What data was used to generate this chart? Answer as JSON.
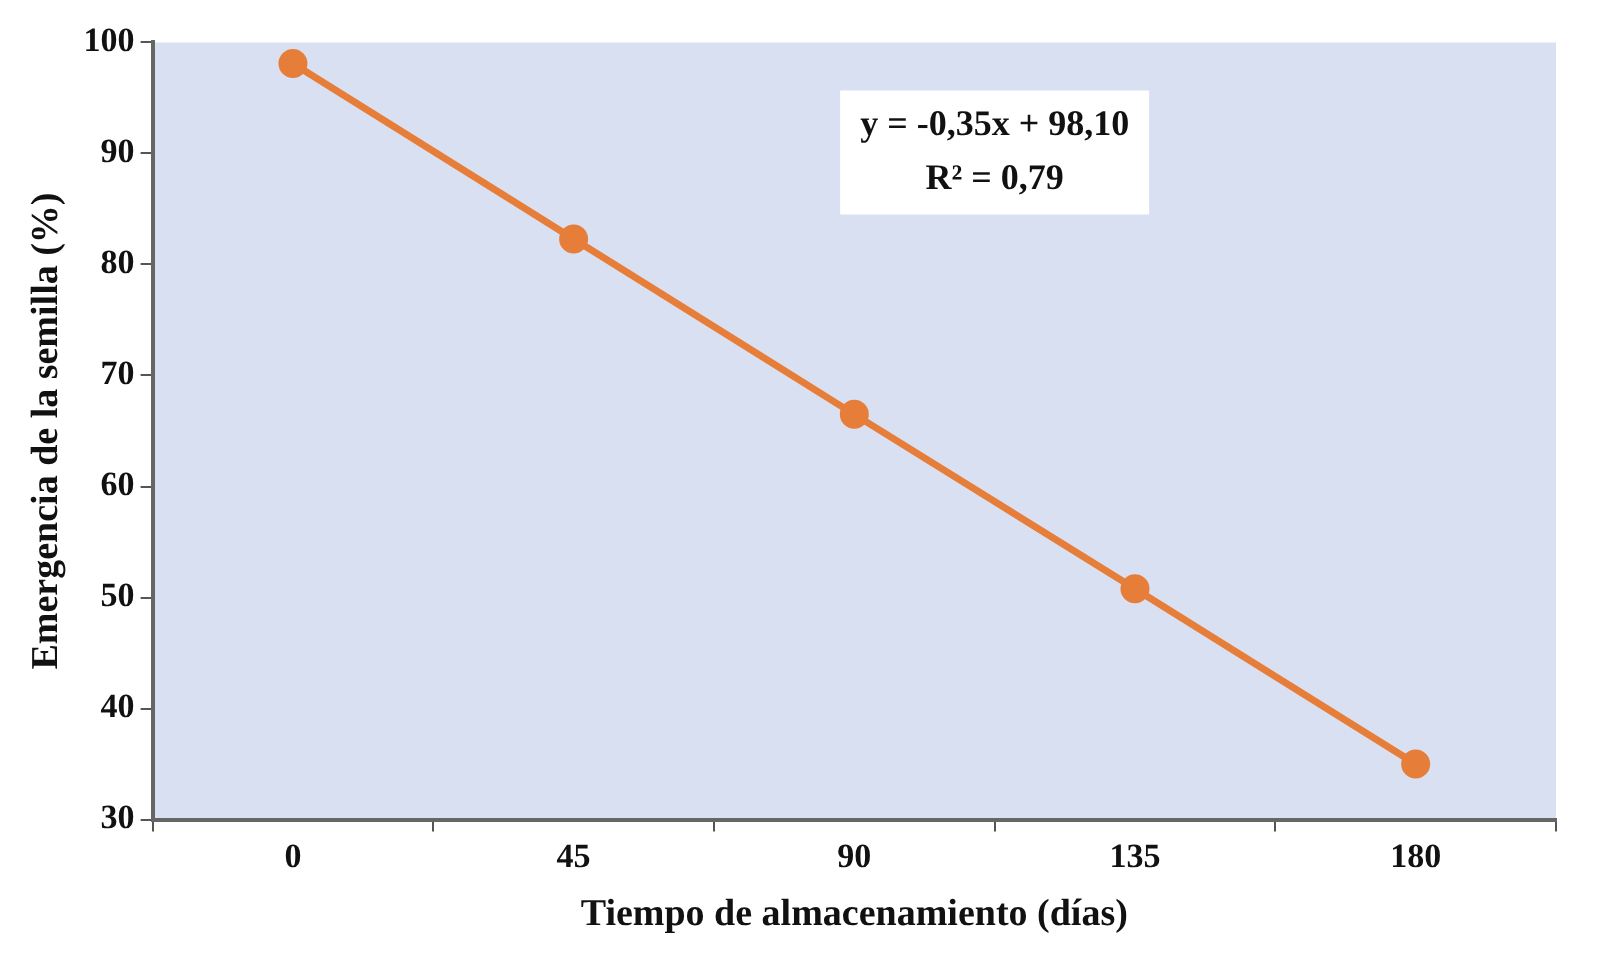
{
  "chart_data": {
    "type": "line",
    "xlabel": "Tiempo de almacenamiento (días)",
    "ylabel": "Emergencia de la semilla (%)",
    "categories": [
      "0",
      "45",
      "90",
      "135",
      "180"
    ],
    "series": [
      {
        "color": "#e67e3a",
        "values": [
          98.1,
          82.3,
          66.5,
          50.8,
          35.0
        ]
      }
    ],
    "ylim": [
      30,
      100
    ],
    "yticks": [
      30,
      40,
      50,
      60,
      70,
      80,
      90,
      100
    ],
    "grid": false,
    "legend": false,
    "marker": "circle",
    "line_style": "solid",
    "annotations": [
      "y = -0,35x + 98,10",
      "R² = 0,79"
    ]
  }
}
